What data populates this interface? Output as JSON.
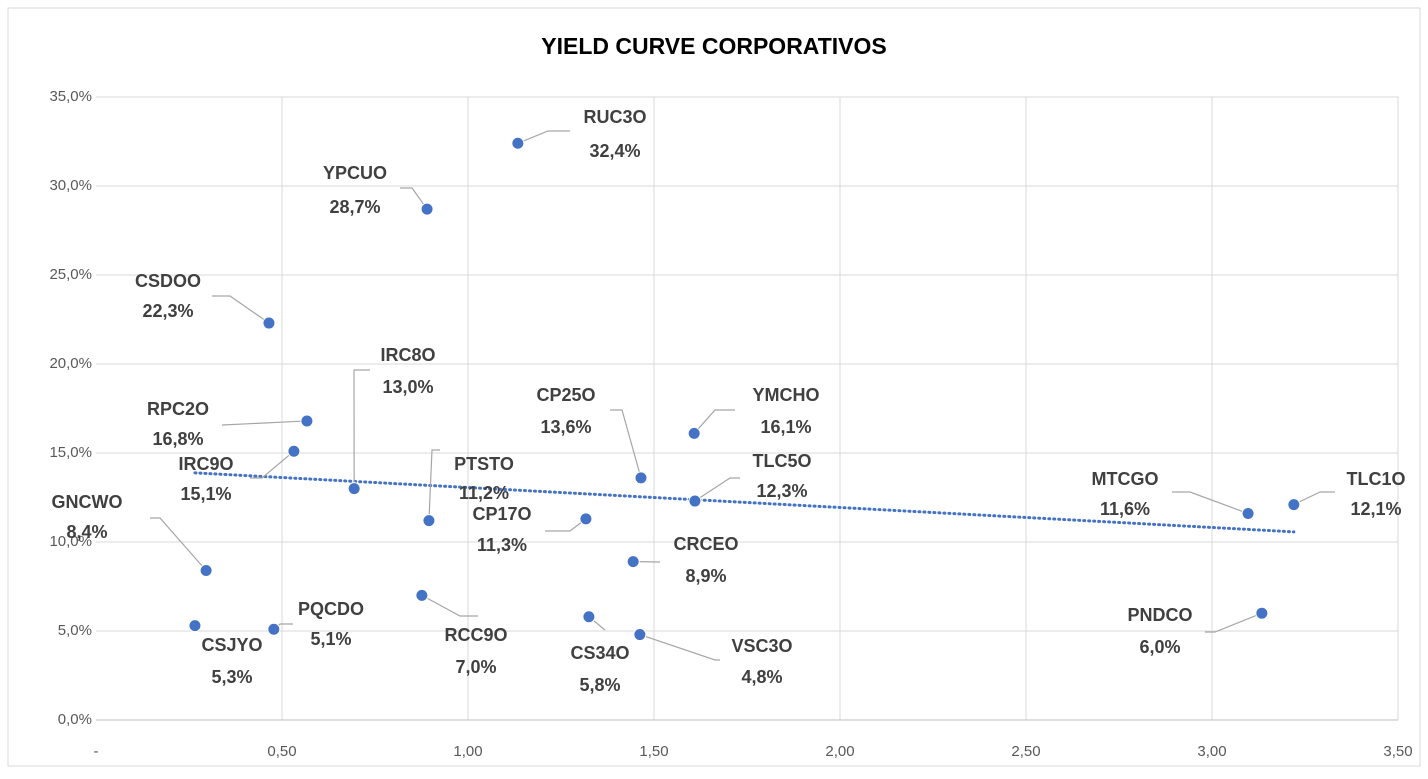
{
  "chart_data": {
    "type": "scatter",
    "title": "YIELD CURVE CORPORATIVOS",
    "xlim": [
      0,
      3.5
    ],
    "xticks": [
      {
        "value": 0,
        "label": "-"
      },
      {
        "value": 0.5,
        "label": "0,50"
      },
      {
        "value": 1,
        "label": "1,00"
      },
      {
        "value": 1.5,
        "label": "1,50"
      },
      {
        "value": 2,
        "label": "2,00"
      },
      {
        "value": 2.5,
        "label": "2,50"
      },
      {
        "value": 3,
        "label": "3,00"
      },
      {
        "value": 3.5,
        "label": "3,50"
      }
    ],
    "ylim": [
      0,
      35
    ],
    "yticks": [
      {
        "value": 0,
        "label": "0,0%"
      },
      {
        "value": 5,
        "label": "5,0%"
      },
      {
        "value": 10,
        "label": "10,0%"
      },
      {
        "value": 15,
        "label": "15,0%"
      },
      {
        "value": 20,
        "label": "20,0%"
      },
      {
        "value": 25,
        "label": "25,0%"
      },
      {
        "value": 30,
        "label": "30,0%"
      },
      {
        "value": 35,
        "label": "35,0%"
      }
    ],
    "grid": true,
    "color": "#4472c4",
    "trendline": {
      "type": "linear",
      "style": "dotted",
      "color": "#4472c4"
    },
    "labels": [
      "RUC3O",
      "YPCUO",
      "CSDOO",
      "RPC2O",
      "IRC9O",
      "IRC8O",
      "PTSTO",
      "GNCWO",
      "CSJYO",
      "PQCDO",
      "RCC9O",
      "CP25O",
      "YMCHO",
      "TLC5O",
      "CP17O",
      "CRCEO",
      "CS34O",
      "VSC3O",
      "MTCGO",
      "TLC1O",
      "PNDCO"
    ],
    "x": [
      1.134,
      0.89,
      0.465,
      0.567,
      0.532,
      0.694,
      0.895,
      0.296,
      0.266,
      0.478,
      0.876,
      1.465,
      1.608,
      1.61,
      1.317,
      1.444,
      1.325,
      1.462,
      3.097,
      3.22,
      3.134
    ],
    "values": [
      32.4,
      28.7,
      22.3,
      16.8,
      15.1,
      13.0,
      11.2,
      8.4,
      5.3,
      5.1,
      7.0,
      13.6,
      16.1,
      12.3,
      11.3,
      8.9,
      5.8,
      4.8,
      11.6,
      12.1,
      6.0
    ],
    "value_labels": [
      "32,4%",
      "28,7%",
      "22,3%",
      "16,8%",
      "15,1%",
      "13,0%",
      "11,2%",
      "8,4%",
      "5,3%",
      "5,1%",
      "7,0%",
      "13,6%",
      "16,1%",
      "12,3%",
      "11,3%",
      "8,9%",
      "5,8%",
      "4,8%",
      "11,6%",
      "12,1%",
      "6,0%"
    ]
  }
}
